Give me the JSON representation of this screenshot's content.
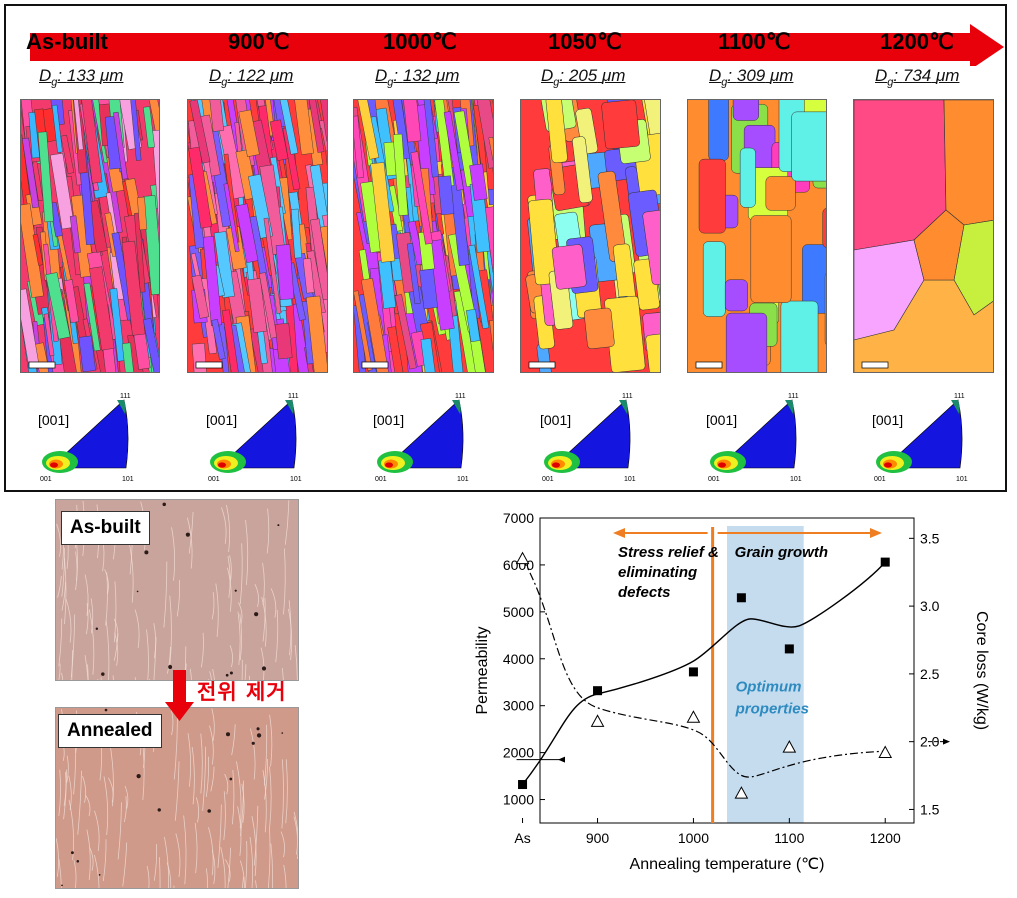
{
  "top_panel": {
    "temperatures": [
      {
        "label": "As-built",
        "dg": "133"
      },
      {
        "label": "900℃",
        "dg": "122"
      },
      {
        "label": "1000℃",
        "dg": "132"
      },
      {
        "label": "1050℃",
        "dg": "205"
      },
      {
        "label": "1100℃",
        "dg": "309"
      },
      {
        "label": "1200℃",
        "dg": "734"
      }
    ],
    "dg_prefix": "D",
    "dg_sub": "g",
    "dg_sep": ": ",
    "dg_unit": "μm",
    "ipf_label": "[001]",
    "ipf_corner_111": "111",
    "ipf_corner_001": "001",
    "ipf_corner_101": "101",
    "arrow_color": "#e8000b"
  },
  "micrographs": {
    "as_built_label": "As-built",
    "annealed_label": "Annealed",
    "arrow_text": "전위 제거",
    "arrow_text_color": "#e8000b"
  },
  "chart_data": {
    "type": "scatter",
    "xlabel": "Annealing temperature (℃)",
    "ylabel": "Permeability",
    "y2label": "Core loss (W/kg)",
    "categories": [
      "As",
      "900",
      "1000",
      "1100",
      "1200"
    ],
    "ylim": [
      500,
      7000
    ],
    "y2lim": [
      1.4,
      3.65
    ],
    "yticks": [
      "1000",
      "2000",
      "3000",
      "4000",
      "5000",
      "6000",
      "7000"
    ],
    "y2ticks": [
      "1.5",
      "2.0",
      "2.5",
      "3.0",
      "3.5"
    ],
    "series": [
      {
        "marker": "square",
        "axis": "left",
        "points": [
          [
            0,
            1320
          ],
          [
            900,
            3320
          ],
          [
            1000,
            3720
          ],
          [
            1050,
            5300
          ],
          [
            1100,
            4210
          ],
          [
            1200,
            6060
          ]
        ]
      },
      {
        "marker": "triangle",
        "axis": "right",
        "points": [
          [
            0,
            3.35
          ],
          [
            900,
            2.15
          ],
          [
            1000,
            2.18
          ],
          [
            1050,
            1.62
          ],
          [
            1100,
            1.96
          ],
          [
            1200,
            1.92
          ]
        ]
      }
    ],
    "annotations": {
      "stress_relief": [
        "Stress relief &",
        "eliminating",
        "defects"
      ],
      "grain_growth": "Grain growth",
      "optimum": [
        "Optimum",
        "properties"
      ]
    },
    "colors": {
      "orange": "#ef7d22",
      "band": "#c5dcef",
      "optimum_text": "#2e8bc0"
    }
  }
}
